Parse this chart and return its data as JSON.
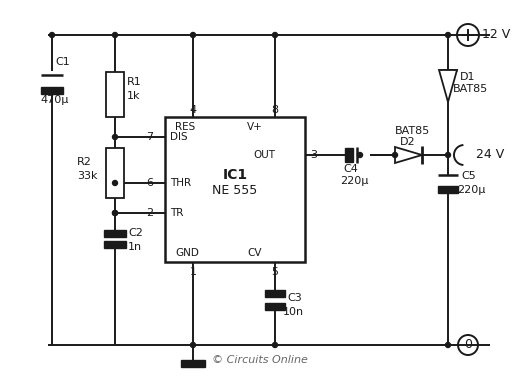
{
  "background_color": "#ffffff",
  "line_color": "#1a1a1a",
  "copyright": "© Circuits Online",
  "ic_label1": "IC1",
  "ic_label2": "NE 555",
  "vcc_label": "12 V",
  "out_label": "24 V",
  "gnd_label": "0"
}
